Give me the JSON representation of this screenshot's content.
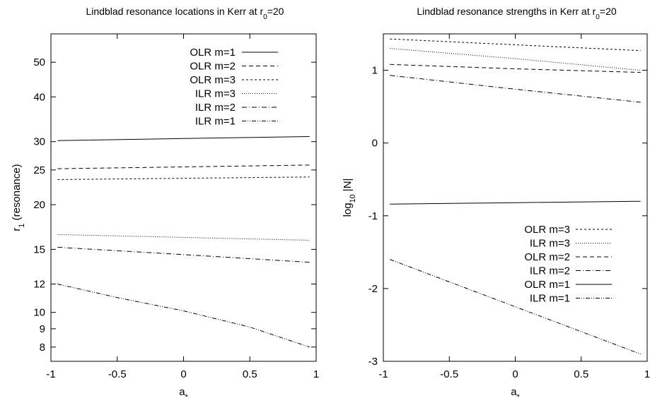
{
  "chart_data": [
    {
      "type": "line",
      "title": "Lindblad resonance locations in Kerr at r",
      "title_sub": "0",
      "title_tail": "=20",
      "xlabel": "a",
      "xlabel_sub": "*",
      "ylabel": "r",
      "ylabel_sub": "1",
      "ylabel_tail": " (resonance)",
      "yscale": "log",
      "xlim": [
        -1,
        1
      ],
      "ylim": [
        7.3,
        60
      ],
      "xticks": [
        -1,
        -0.5,
        0,
        0.5,
        1
      ],
      "xtick_labels": [
        "-1",
        "-0.5",
        "0",
        "0.5",
        "1"
      ],
      "yticks": [
        8,
        9,
        10,
        12,
        15,
        20,
        25,
        30,
        40,
        50
      ],
      "ytick_labels": [
        "8",
        "9",
        "10",
        "12",
        "15",
        "20",
        "25",
        "30",
        "40",
        "50"
      ],
      "legend_position": "top-right",
      "series": [
        {
          "name": "OLR m=1",
          "dash": "",
          "x": [
            -0.95,
            0,
            0.95
          ],
          "y": [
            30.2,
            30.6,
            31.0
          ]
        },
        {
          "name": "OLR m=2",
          "dash": "6,4",
          "x": [
            -0.95,
            0,
            0.95
          ],
          "y": [
            25.2,
            25.5,
            25.8
          ]
        },
        {
          "name": "OLR m=3",
          "dash": "3,3",
          "x": [
            -0.95,
            0,
            0.95
          ],
          "y": [
            23.5,
            23.7,
            23.9
          ]
        },
        {
          "name": "ILR m=3",
          "dash": "1,2",
          "x": [
            -0.95,
            0,
            0.95
          ],
          "y": [
            16.5,
            16.2,
            15.9
          ]
        },
        {
          "name": "ILR m=2",
          "dash": "7,3,1,3",
          "x": [
            -0.95,
            0,
            0.95
          ],
          "y": [
            15.2,
            14.5,
            13.8
          ]
        },
        {
          "name": "ILR m=1",
          "dash": "6,2,1,2,1,2",
          "x": [
            -0.95,
            -0.5,
            0,
            0.5,
            0.95
          ],
          "y": [
            12.0,
            11.0,
            10.1,
            9.1,
            8.0
          ]
        }
      ]
    },
    {
      "type": "line",
      "title": "Lindblad resonance strengths in Kerr at r",
      "title_sub": "0",
      "title_tail": "=20",
      "xlabel": "a",
      "xlabel_sub": "*",
      "ylabel": "log",
      "ylabel_sub": "10",
      "ylabel_tail": " |N|",
      "yscale": "linear",
      "xlim": [
        -1,
        1
      ],
      "ylim": [
        -3,
        1.5
      ],
      "xticks": [
        -1,
        -0.5,
        0,
        0.5,
        1
      ],
      "xtick_labels": [
        "-1",
        "-0.5",
        "0",
        "0.5",
        "1"
      ],
      "yticks": [
        -3,
        -2,
        -1,
        0,
        1
      ],
      "ytick_labels": [
        "-3",
        "-2",
        "-1",
        "0",
        "1"
      ],
      "legend_position": "bottom-right",
      "series": [
        {
          "name": "OLR m=3",
          "dash": "3,3",
          "x": [
            -0.95,
            0,
            0.95
          ],
          "y": [
            1.43,
            1.35,
            1.27
          ]
        },
        {
          "name": "ILR m=3",
          "dash": "1,2",
          "x": [
            -0.95,
            0,
            0.95
          ],
          "y": [
            1.3,
            1.16,
            1.0
          ]
        },
        {
          "name": "OLR m=2",
          "dash": "6,4",
          "x": [
            -0.95,
            0,
            0.95
          ],
          "y": [
            1.08,
            1.02,
            0.97
          ]
        },
        {
          "name": "ILR m=2",
          "dash": "7,3,1,3",
          "x": [
            -0.95,
            0,
            0.95
          ],
          "y": [
            0.93,
            0.74,
            0.56
          ]
        },
        {
          "name": "OLR m=1",
          "dash": "",
          "x": [
            -0.95,
            0,
            0.95
          ],
          "y": [
            -0.84,
            -0.82,
            -0.8
          ]
        },
        {
          "name": "ILR m=1",
          "dash": "6,2,1,2,1,2",
          "x": [
            -0.95,
            0,
            0.95
          ],
          "y": [
            -1.6,
            -2.25,
            -2.9
          ]
        }
      ]
    }
  ]
}
